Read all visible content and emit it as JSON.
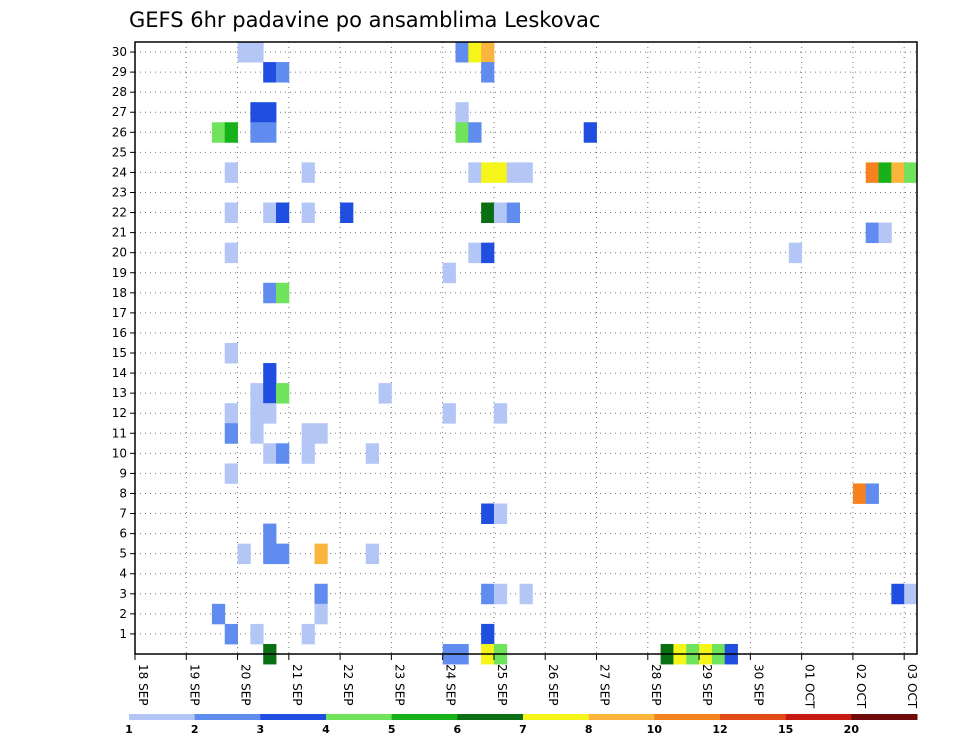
{
  "chart_data": {
    "type": "heatmap",
    "title": "GEFS 6hr padavine po ansamblima Leskovac",
    "xlabel": "",
    "ylabel": "",
    "x_ticks": [
      "18 SEP",
      "19 SEP",
      "20 SEP",
      "21 SEP",
      "22 SEP",
      "23 SEP",
      "24 SEP",
      "25 SEP",
      "26 SEP",
      "27 SEP",
      "28 SEP",
      "29 SEP",
      "30 SEP",
      "01 OCT",
      "02 OCT",
      "03 OCT"
    ],
    "y_ticks": [
      "1",
      "2",
      "3",
      "4",
      "5",
      "6",
      "7",
      "8",
      "9",
      "10",
      "11",
      "12",
      "13",
      "14",
      "15",
      "16",
      "17",
      "18",
      "19",
      "20",
      "21",
      "22",
      "23",
      "24",
      "25",
      "26",
      "27",
      "28",
      "29",
      "30"
    ],
    "y_range": [
      0,
      30
    ],
    "x_step": "6hr",
    "grid": true,
    "color_levels": [
      {
        "label": "1",
        "color": "#b3c6f5"
      },
      {
        "label": "2",
        "color": "#5f8cee"
      },
      {
        "label": "3",
        "color": "#1f4ee0"
      },
      {
        "label": "4",
        "color": "#6fe35c"
      },
      {
        "label": "5",
        "color": "#17b21a"
      },
      {
        "label": "6",
        "color": "#0a6e12"
      },
      {
        "label": "7",
        "color": "#f5f51a"
      },
      {
        "label": "8",
        "color": "#f9b53c"
      },
      {
        "label": "10",
        "color": "#f5821e"
      },
      {
        "label": "12",
        "color": "#e04a14"
      },
      {
        "label": "15",
        "color": "#c41a12"
      },
      {
        "label": "20",
        "color": "#6e0a0a"
      }
    ],
    "cells": [
      [
        8,
        30,
        0
      ],
      [
        9,
        30,
        0
      ],
      [
        25,
        30,
        1
      ],
      [
        26,
        30,
        6
      ],
      [
        27,
        30,
        7
      ],
      [
        10,
        29,
        2
      ],
      [
        11,
        29,
        1
      ],
      [
        27,
        29,
        1
      ],
      [
        9,
        27,
        2
      ],
      [
        10,
        27,
        2
      ],
      [
        25,
        27,
        0
      ],
      [
        6,
        26,
        3
      ],
      [
        7,
        26,
        4
      ],
      [
        9,
        26,
        1
      ],
      [
        10,
        26,
        1
      ],
      [
        25,
        26,
        3
      ],
      [
        26,
        26,
        1
      ],
      [
        35,
        26,
        2
      ],
      [
        7,
        24,
        0
      ],
      [
        13,
        24,
        0
      ],
      [
        26,
        24,
        0
      ],
      [
        27,
        24,
        6
      ],
      [
        28,
        24,
        6
      ],
      [
        29,
        24,
        0
      ],
      [
        30,
        24,
        0
      ],
      [
        57,
        24,
        8
      ],
      [
        58,
        24,
        4
      ],
      [
        59,
        24,
        7
      ],
      [
        60,
        24,
        3
      ],
      [
        7,
        22,
        0
      ],
      [
        10,
        22,
        0
      ],
      [
        11,
        22,
        2
      ],
      [
        13,
        22,
        0
      ],
      [
        16,
        22,
        2
      ],
      [
        27,
        22,
        5
      ],
      [
        28,
        22,
        0
      ],
      [
        29,
        22,
        1
      ],
      [
        57,
        21,
        1
      ],
      [
        58,
        21,
        0
      ],
      [
        7,
        20,
        0
      ],
      [
        26,
        20,
        0
      ],
      [
        27,
        20,
        2
      ],
      [
        51,
        20,
        0
      ],
      [
        24,
        19,
        0
      ],
      [
        10,
        18,
        1
      ],
      [
        11,
        18,
        3
      ],
      [
        7,
        15,
        0
      ],
      [
        10,
        14,
        2
      ],
      [
        9,
        13,
        0
      ],
      [
        10,
        13,
        2
      ],
      [
        11,
        13,
        3
      ],
      [
        19,
        13,
        0
      ],
      [
        7,
        12,
        0
      ],
      [
        9,
        12,
        0
      ],
      [
        10,
        12,
        0
      ],
      [
        24,
        12,
        0
      ],
      [
        28,
        12,
        0
      ],
      [
        7,
        11,
        1
      ],
      [
        9,
        11,
        0
      ],
      [
        13,
        11,
        0
      ],
      [
        14,
        11,
        0
      ],
      [
        10,
        10,
        0
      ],
      [
        11,
        10,
        1
      ],
      [
        13,
        10,
        0
      ],
      [
        18,
        10,
        0
      ],
      [
        7,
        9,
        0
      ],
      [
        56,
        8,
        8
      ],
      [
        57,
        8,
        1
      ],
      [
        27,
        7,
        2
      ],
      [
        28,
        7,
        0
      ],
      [
        10,
        6,
        1
      ],
      [
        8,
        5,
        0
      ],
      [
        10,
        5,
        1
      ],
      [
        11,
        5,
        1
      ],
      [
        14,
        5,
        7
      ],
      [
        18,
        5,
        0
      ],
      [
        14,
        3,
        1
      ],
      [
        27,
        3,
        1
      ],
      [
        28,
        3,
        0
      ],
      [
        30,
        3,
        0
      ],
      [
        59,
        3,
        2
      ],
      [
        60,
        3,
        0
      ],
      [
        6,
        2,
        1
      ],
      [
        14,
        2,
        0
      ],
      [
        7,
        1,
        1
      ],
      [
        9,
        1,
        0
      ],
      [
        13,
        1,
        0
      ],
      [
        27,
        1,
        2
      ],
      [
        10,
        0,
        5
      ],
      [
        24,
        0,
        1
      ],
      [
        25,
        0,
        1
      ],
      [
        27,
        0,
        6
      ],
      [
        28,
        0,
        3
      ],
      [
        41,
        0,
        5
      ],
      [
        42,
        0,
        6
      ],
      [
        43,
        0,
        3
      ],
      [
        44,
        0,
        6
      ],
      [
        45,
        0,
        3
      ],
      [
        46,
        0,
        2
      ]
    ]
  }
}
